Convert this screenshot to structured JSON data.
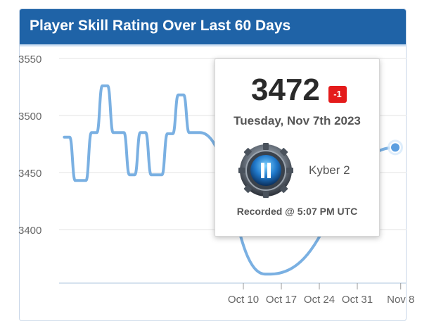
{
  "chart_data": {
    "type": "line",
    "title": "Player Skill Rating Over Last 60 Days",
    "xlabel": "",
    "ylabel": "",
    "x_ticks": [
      "Oct 10",
      "Oct 17",
      "Oct 24",
      "Oct 31",
      "Nov 8"
    ],
    "y_ticks": [
      "3550",
      "3500",
      "3450",
      "3400"
    ],
    "ylim": [
      3350,
      3550
    ],
    "grid": true,
    "series": [
      {
        "color": "#7ab0e2",
        "points": [
          {
            "x": "Sep 7",
            "y": 3481
          },
          {
            "x": "Sep 8",
            "y": 3481
          },
          {
            "x": "Sep 9",
            "y": 3443
          },
          {
            "x": "Sep 10",
            "y": 3443
          },
          {
            "x": "Sep 11",
            "y": 3443
          },
          {
            "x": "Sep 12",
            "y": 3485
          },
          {
            "x": "Sep 13",
            "y": 3485
          },
          {
            "x": "Sep 14",
            "y": 3526
          },
          {
            "x": "Sep 15",
            "y": 3526
          },
          {
            "x": "Sep 16",
            "y": 3485
          },
          {
            "x": "Sep 17",
            "y": 3485
          },
          {
            "x": "Sep 18",
            "y": 3485
          },
          {
            "x": "Sep 19",
            "y": 3448
          },
          {
            "x": "Sep 20",
            "y": 3448
          },
          {
            "x": "Sep 21",
            "y": 3485
          },
          {
            "x": "Sep 22",
            "y": 3485
          },
          {
            "x": "Sep 23",
            "y": 3448
          },
          {
            "x": "Sep 24",
            "y": 3448
          },
          {
            "x": "Sep 25",
            "y": 3448
          },
          {
            "x": "Sep 26",
            "y": 3484
          },
          {
            "x": "Sep 27",
            "y": 3484
          },
          {
            "x": "Sep 28",
            "y": 3518
          },
          {
            "x": "Sep 29",
            "y": 3518
          },
          {
            "x": "Sep 30",
            "y": 3485
          },
          {
            "x": "Oct 1",
            "y": 3485
          },
          {
            "x": "Oct 2",
            "y": 3485
          },
          {
            "x": "Oct 14",
            "y": 3361
          },
          {
            "x": "Oct 15",
            "y": 3361
          },
          {
            "x": "Nov 7",
            "y": 3472
          }
        ]
      }
    ],
    "highlighted_point": {
      "x": "Nov 7",
      "y": 3472
    }
  },
  "tooltip": {
    "value": "3472",
    "change": "-1",
    "change_color": "#e41b1b",
    "date": "Tuesday, Nov 7th 2023",
    "rank_name": "Kyber 2",
    "rank_icon": "kyber-rank-emblem",
    "recorded": "Recorded @ 5:07 PM UTC"
  },
  "colors": {
    "header": "#1f63a7",
    "line": "#7ab0e2",
    "point": "#5b9ee0"
  }
}
